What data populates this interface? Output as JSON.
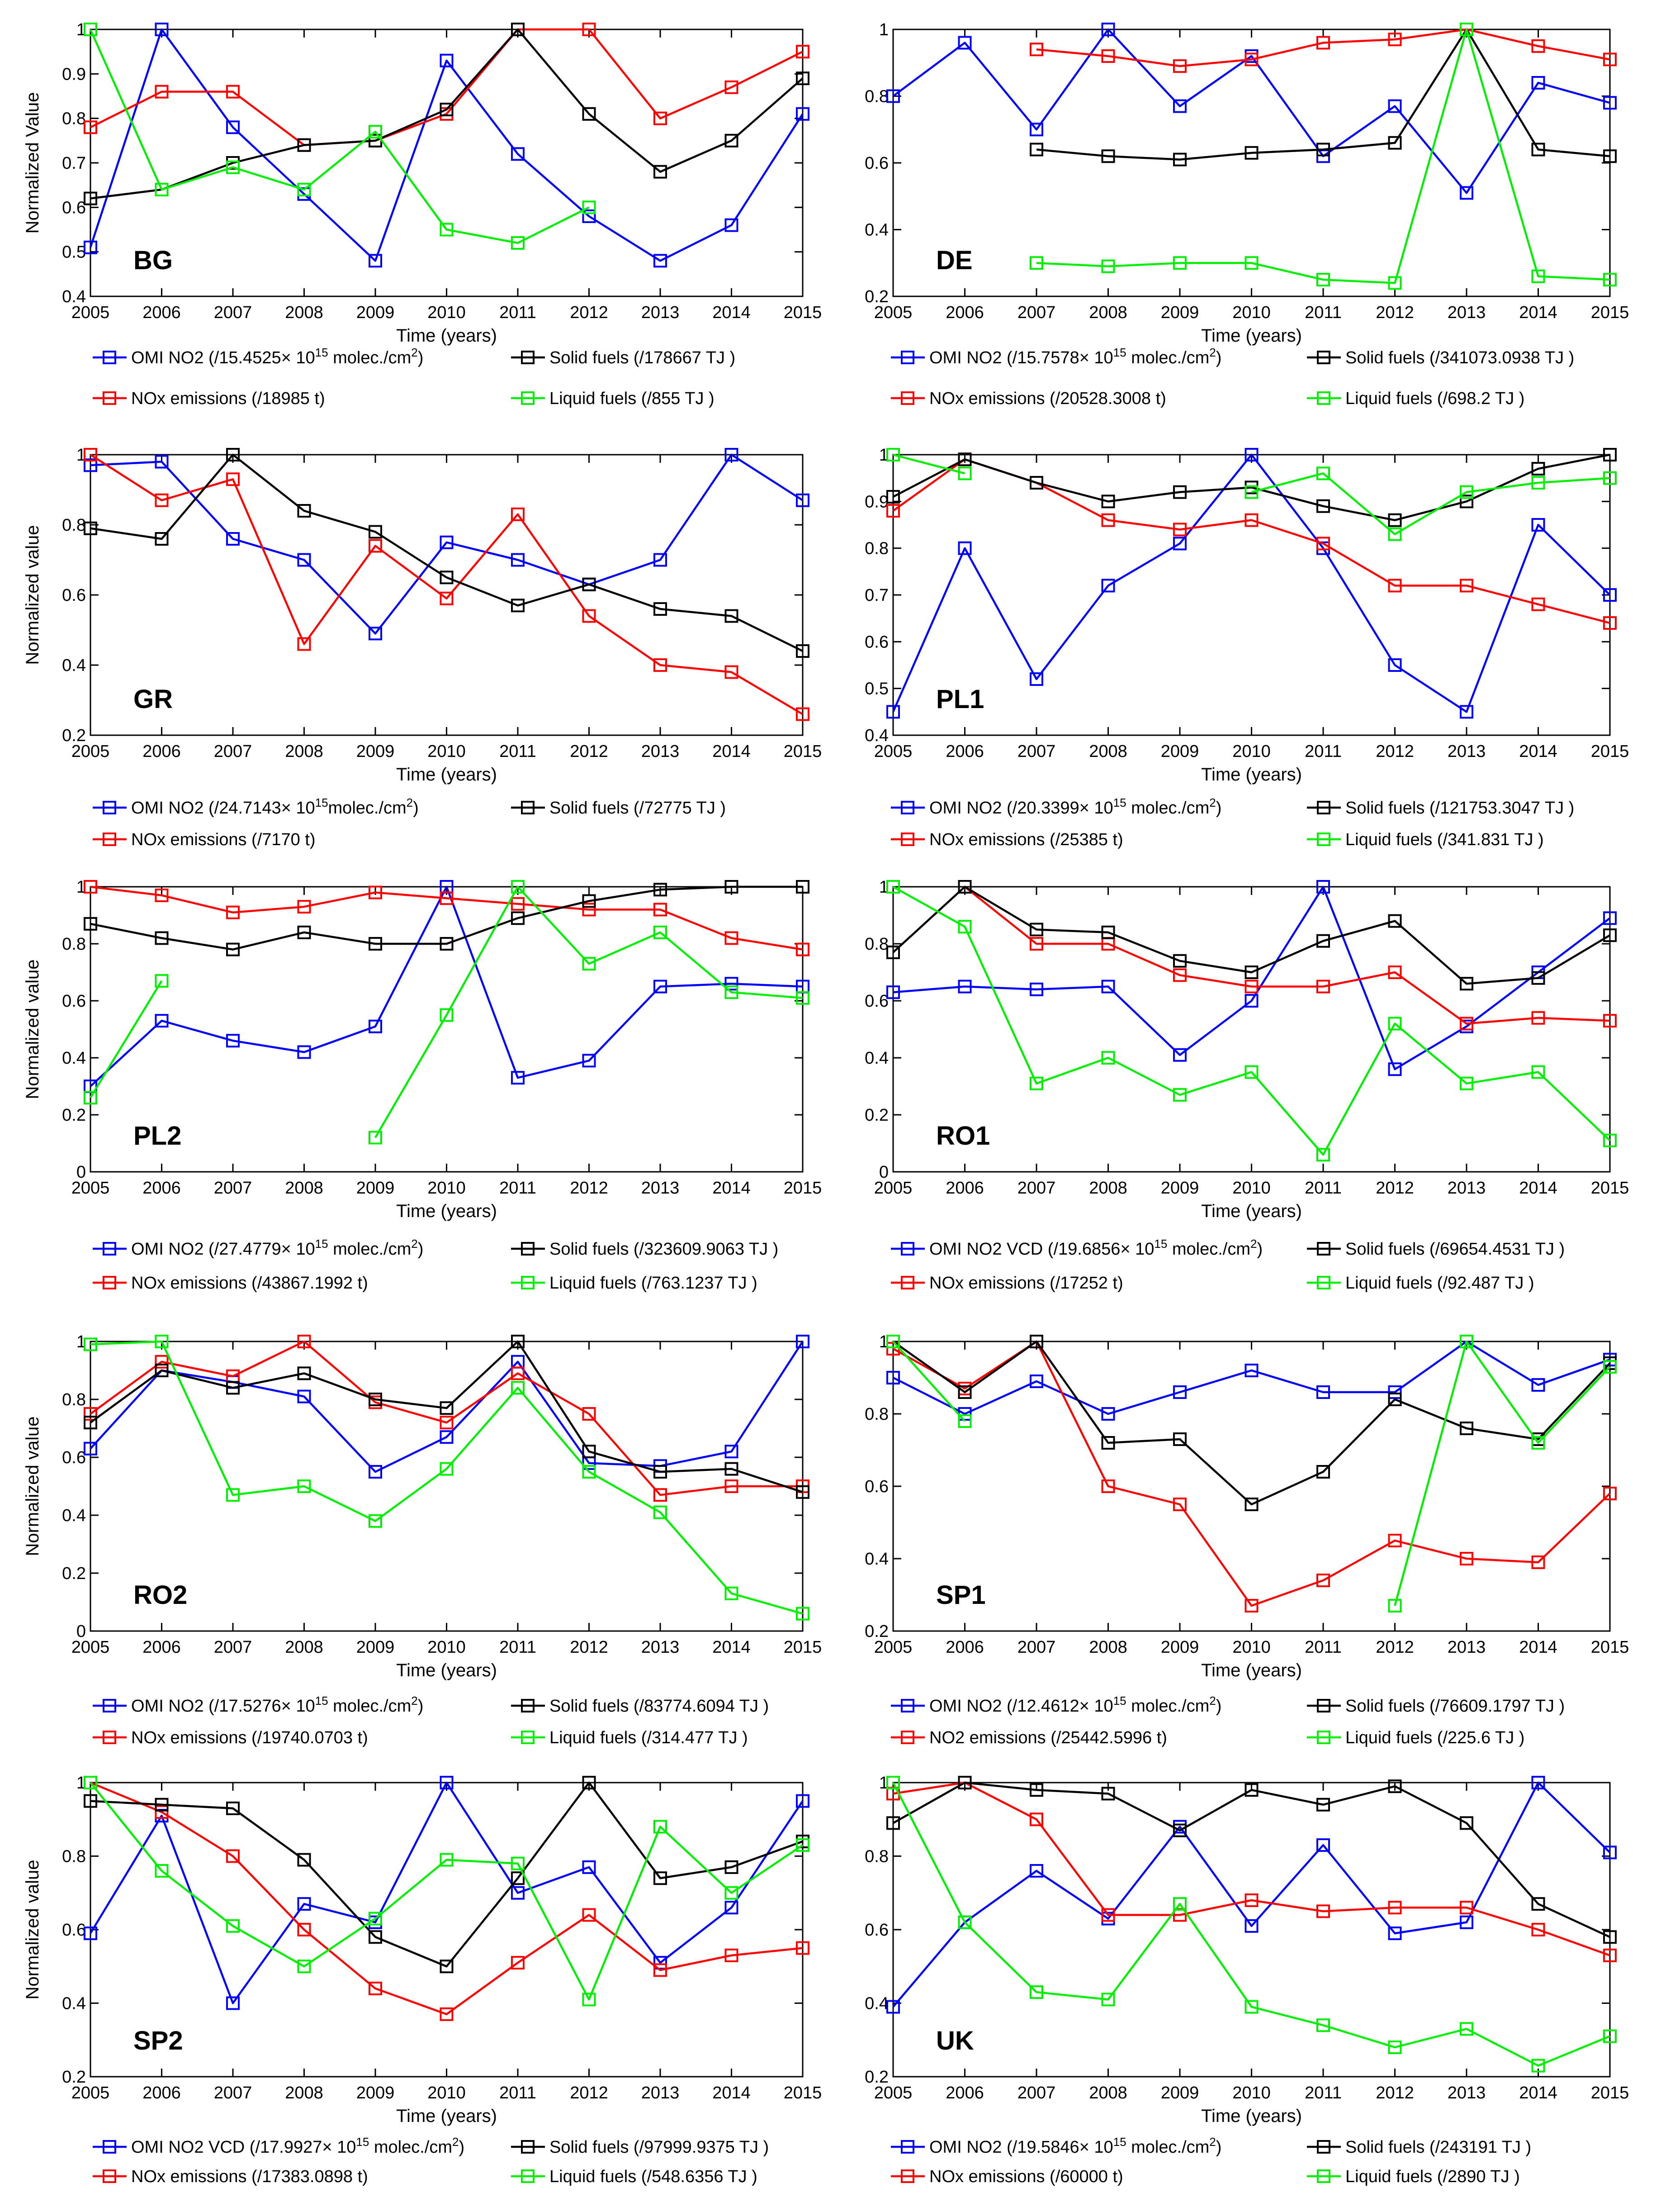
{
  "colors": {
    "omi": "#0000ff",
    "nox": "#ff0000",
    "solid": "#000000",
    "liquid": "#00ee00"
  },
  "chart_data": [
    {
      "type": "line",
      "code": "BG",
      "x": [
        2005,
        2006,
        2007,
        2008,
        2009,
        2010,
        2011,
        2012,
        2013,
        2014,
        2015
      ],
      "ylim": [
        0.4,
        1
      ],
      "yticks": [
        "0.4",
        "0.5",
        "0.6",
        "0.7",
        "0.8",
        "0.9",
        "1"
      ],
      "ylabel": "Normalized Value",
      "xlabel": "Time (years)",
      "series": [
        {
          "key": "omi",
          "legend": "OMI NO2 (/15.4525× 10",
          "sup": "15",
          "tail": " molec./cm",
          "sup2": "2",
          "tail2": ")",
          "values": [
            0.51,
            1.0,
            0.78,
            0.63,
            0.48,
            0.93,
            0.72,
            0.58,
            0.48,
            0.56,
            0.81
          ]
        },
        {
          "key": "nox",
          "legend": "NOx emissions (/18985 t)",
          "values": [
            0.78,
            0.86,
            0.86,
            0.74,
            0.75,
            0.81,
            1.0,
            1.0,
            0.8,
            0.87,
            0.95
          ]
        },
        {
          "key": "solid",
          "legend": "Solid fuels (/178667 TJ )",
          "values": [
            0.62,
            0.64,
            0.7,
            0.74,
            0.75,
            0.82,
            1.0,
            0.81,
            0.68,
            0.75,
            0.89
          ]
        },
        {
          "key": "liquid",
          "legend": "Liquid fuels (/855 TJ )",
          "values": [
            1.0,
            0.64,
            0.69,
            0.64,
            0.77,
            0.55,
            0.52,
            0.6,
            null,
            null,
            null
          ]
        }
      ]
    },
    {
      "type": "line",
      "code": "DE",
      "x": [
        2005,
        2006,
        2007,
        2008,
        2009,
        2010,
        2011,
        2012,
        2013,
        2014,
        2015
      ],
      "ylim": [
        0.2,
        1
      ],
      "yticks": [
        "0.2",
        "0.4",
        "0.6",
        "0.8",
        "1"
      ],
      "ylabel": "",
      "xlabel": "Time (years)",
      "series": [
        {
          "key": "omi",
          "legend": "OMI NO2 (/15.7578× 10",
          "sup": "15",
          "tail": " molec./cm",
          "sup2": "2",
          "tail2": ")",
          "values": [
            0.8,
            0.96,
            0.7,
            1.0,
            0.77,
            0.92,
            0.62,
            0.77,
            0.51,
            0.84,
            0.78
          ]
        },
        {
          "key": "nox",
          "legend": "NOx emissions (/20528.3008 t)",
          "values": [
            null,
            null,
            0.94,
            0.92,
            0.89,
            0.91,
            0.96,
            0.97,
            1.0,
            0.95,
            0.91
          ]
        },
        {
          "key": "solid",
          "legend": "Solid fuels (/341073.0938 TJ )",
          "values": [
            null,
            null,
            0.64,
            0.62,
            0.61,
            0.63,
            0.64,
            0.66,
            1.0,
            0.64,
            0.62
          ]
        },
        {
          "key": "liquid",
          "legend": "Liquid fuels (/698.2 TJ )",
          "values": [
            null,
            null,
            0.3,
            0.29,
            0.3,
            0.3,
            0.25,
            0.24,
            1.0,
            0.26,
            0.25
          ]
        }
      ]
    },
    {
      "type": "line",
      "code": "GR",
      "x": [
        2005,
        2006,
        2007,
        2008,
        2009,
        2010,
        2011,
        2012,
        2013,
        2014,
        2015
      ],
      "ylim": [
        0.2,
        1
      ],
      "yticks": [
        "0.2",
        "0.4",
        "0.6",
        "0.8",
        "1"
      ],
      "ylabel": "Normalized value",
      "xlabel": "Time (years)",
      "series": [
        {
          "key": "omi",
          "legend": "OMI NO2 (/24.7143× 10",
          "sup": "15",
          "tail": "molec./cm",
          "sup2": "2",
          "tail2": ")",
          "values": [
            0.97,
            0.98,
            0.76,
            0.7,
            0.49,
            0.75,
            0.7,
            0.63,
            0.7,
            1.0,
            0.87
          ]
        },
        {
          "key": "nox",
          "legend": "NOx emissions (/7170 t)",
          "values": [
            1.0,
            0.87,
            0.93,
            0.46,
            0.74,
            0.59,
            0.83,
            0.54,
            0.4,
            0.38,
            0.26
          ]
        },
        {
          "key": "solid",
          "legend": "Solid fuels (/72775 TJ )",
          "values": [
            0.79,
            0.76,
            1.0,
            0.84,
            0.78,
            0.65,
            0.57,
            0.63,
            0.56,
            0.54,
            0.44
          ]
        }
      ]
    },
    {
      "type": "line",
      "code": "PL1",
      "x": [
        2005,
        2006,
        2007,
        2008,
        2009,
        2010,
        2011,
        2012,
        2013,
        2014,
        2015
      ],
      "ylim": [
        0.4,
        1
      ],
      "yticks": [
        "0.4",
        "0.5",
        "0.6",
        "0.7",
        "0.8",
        "0.9",
        "1"
      ],
      "ylabel": "",
      "xlabel": "Time (years)",
      "series": [
        {
          "key": "omi",
          "legend": "OMI NO2 (/20.3399× 10",
          "sup": "15",
          "tail": " molec./cm",
          "sup2": "2",
          "tail2": ")",
          "values": [
            0.45,
            0.8,
            0.52,
            0.72,
            0.81,
            1.0,
            0.8,
            0.55,
            0.45,
            0.85,
            0.7
          ]
        },
        {
          "key": "nox",
          "legend": "NOx emissions (/25385 t)",
          "values": [
            0.88,
            0.99,
            0.94,
            0.86,
            0.84,
            0.86,
            0.81,
            0.72,
            0.72,
            0.68,
            0.64
          ]
        },
        {
          "key": "solid",
          "legend": "Solid fuels (/121753.3047 TJ )",
          "values": [
            0.91,
            0.99,
            0.94,
            0.9,
            0.92,
            0.93,
            0.89,
            0.86,
            0.9,
            0.97,
            1.0
          ]
        },
        {
          "key": "liquid",
          "legend": "Liquid fuels (/341.831 TJ )",
          "values": [
            1.0,
            0.96,
            null,
            null,
            null,
            0.92,
            0.96,
            0.83,
            0.92,
            0.94,
            0.95
          ]
        }
      ]
    },
    {
      "type": "line",
      "code": "PL2",
      "x": [
        2005,
        2006,
        2007,
        2008,
        2009,
        2010,
        2011,
        2012,
        2013,
        2014,
        2015
      ],
      "ylim": [
        0,
        1
      ],
      "yticks": [
        "0",
        "0.2",
        "0.4",
        "0.6",
        "0.8",
        "1"
      ],
      "ylabel": "Normalized value",
      "xlabel": "Time (years)",
      "xtick_last": "2015",
      "series": [
        {
          "key": "omi",
          "legend": "OMI NO2 (/27.4779× 10",
          "sup": "15",
          "tail": " molec./cm",
          "sup2": "2",
          "tail2": ")",
          "values": [
            0.3,
            0.53,
            0.46,
            0.42,
            0.51,
            1.0,
            0.33,
            0.39,
            0.65,
            0.66,
            0.65
          ]
        },
        {
          "key": "nox",
          "legend": "NOx emissions (/43867.1992 t)",
          "values": [
            1.0,
            0.97,
            0.91,
            0.93,
            0.98,
            0.96,
            0.94,
            0.92,
            0.92,
            0.82,
            0.78
          ]
        },
        {
          "key": "solid",
          "legend": "Solid fuels (/323609.9063 TJ )",
          "values": [
            0.87,
            0.82,
            0.78,
            0.84,
            0.8,
            0.8,
            0.89,
            0.95,
            0.99,
            1.0,
            1.0
          ]
        },
        {
          "key": "liquid",
          "legend": "Liquid fuels (/763.1237 TJ )",
          "values": [
            0.26,
            0.67,
            null,
            null,
            0.12,
            0.55,
            1.0,
            0.73,
            0.84,
            0.63,
            0.61
          ]
        }
      ]
    },
    {
      "type": "line",
      "code": "RO1",
      "x": [
        2005,
        2006,
        2007,
        2008,
        2009,
        2010,
        2011,
        2012,
        2013,
        2014,
        2015
      ],
      "ylim": [
        0,
        1
      ],
      "yticks": [
        "0",
        "0.2",
        "0.4",
        "0.6",
        "0.8",
        "1"
      ],
      "ylabel": "",
      "xlabel": "Time (years)",
      "series": [
        {
          "key": "omi",
          "legend": "OMI NO2 VCD (/19.6856× 10",
          "sup": "15",
          "tail": " molec./cm",
          "sup2": "2",
          "tail2": ")",
          "values": [
            0.63,
            0.65,
            0.64,
            0.65,
            0.41,
            0.6,
            1.0,
            0.36,
            0.51,
            0.7,
            0.89
          ]
        },
        {
          "key": "nox",
          "legend": "NOx emissions (/17252 t)",
          "values": [
            0.77,
            1.0,
            0.8,
            0.8,
            0.69,
            0.65,
            0.65,
            0.7,
            0.52,
            0.54,
            0.53
          ]
        },
        {
          "key": "solid",
          "legend": "Solid fuels (/69654.4531 TJ )",
          "values": [
            0.77,
            1.0,
            0.85,
            0.84,
            0.74,
            0.7,
            0.81,
            0.88,
            0.66,
            0.68,
            0.83
          ]
        },
        {
          "key": "liquid",
          "legend": "Liquid fuels (/92.487 TJ )",
          "values": [
            1.0,
            0.86,
            0.31,
            0.4,
            0.27,
            0.35,
            0.06,
            0.52,
            0.31,
            0.35,
            0.11
          ]
        }
      ]
    },
    {
      "type": "line",
      "code": "RO2",
      "x": [
        2005,
        2006,
        2007,
        2008,
        2009,
        2010,
        2011,
        2012,
        2013,
        2014,
        2015
      ],
      "ylim": [
        0,
        1
      ],
      "yticks": [
        "0",
        "0.2",
        "0.4",
        "0.6",
        "0.8",
        "1"
      ],
      "ylabel": "Normalized value",
      "xlabel": "Time (years)",
      "series": [
        {
          "key": "omi",
          "legend": "OMI NO2 (/17.5276× 10",
          "sup": "15",
          "tail": " molec./cm",
          "sup2": "2",
          "tail2": ")",
          "values": [
            0.63,
            0.9,
            0.86,
            0.81,
            0.55,
            0.67,
            0.93,
            0.58,
            0.57,
            0.62,
            1.0
          ]
        },
        {
          "key": "nox",
          "legend": "NOx emissions (/19740.0703 t)",
          "values": [
            0.75,
            0.93,
            0.88,
            1.0,
            0.79,
            0.72,
            0.89,
            0.75,
            0.47,
            0.5,
            0.5
          ]
        },
        {
          "key": "solid",
          "legend": "Solid fuels (/83774.6094 TJ )",
          "values": [
            0.72,
            0.9,
            0.84,
            0.89,
            0.8,
            0.77,
            1.0,
            0.62,
            0.55,
            0.56,
            0.48
          ]
        },
        {
          "key": "liquid",
          "legend": "Liquid fuels (/314.477 TJ )",
          "values": [
            0.99,
            1.0,
            0.47,
            0.5,
            0.38,
            0.56,
            0.84,
            0.55,
            0.41,
            0.13,
            0.06
          ]
        }
      ]
    },
    {
      "type": "line",
      "code": "SP1",
      "x": [
        2005,
        2006,
        2007,
        2008,
        2009,
        2010,
        2011,
        2012,
        2013,
        2014,
        2015
      ],
      "ylim": [
        0.2,
        1
      ],
      "yticks": [
        "0.2",
        "0.4",
        "0.6",
        "0.8",
        "1"
      ],
      "ylabel": "",
      "xlabel": "Time (years)",
      "series": [
        {
          "key": "omi",
          "legend": "OMI NO2 (/12.4612× 10",
          "sup": "15",
          "tail": " molec./cm",
          "sup2": "2",
          "tail2": ")",
          "values": [
            0.9,
            0.8,
            0.89,
            0.8,
            0.86,
            0.92,
            0.86,
            0.86,
            1.0,
            0.88,
            0.95
          ]
        },
        {
          "key": "nox",
          "legend": "NO2 emissions (/25442.5996 t)",
          "values": [
            0.98,
            0.87,
            1.0,
            0.6,
            0.55,
            0.27,
            0.34,
            0.45,
            0.4,
            0.39,
            0.58
          ]
        },
        {
          "key": "solid",
          "legend": "Solid fuels (/76609.1797 TJ )",
          "values": [
            1.0,
            0.86,
            1.0,
            0.72,
            0.73,
            0.55,
            0.64,
            0.84,
            0.76,
            0.73,
            0.94
          ]
        },
        {
          "key": "liquid",
          "legend": "Liquid fuels (/225.6 TJ )",
          "values": [
            1.0,
            0.78,
            null,
            null,
            null,
            null,
            null,
            0.27,
            1.0,
            0.72,
            0.93
          ]
        }
      ]
    },
    {
      "type": "line",
      "code": "SP2",
      "x": [
        2005,
        2006,
        2007,
        2008,
        2009,
        2010,
        2011,
        2012,
        2013,
        2014,
        2015
      ],
      "ylim": [
        0.2,
        1
      ],
      "yticks": [
        "0.2",
        "0.4",
        "0.6",
        "0.8",
        "1"
      ],
      "ylabel": "Normalized value",
      "xlabel": "Time (years)",
      "series": [
        {
          "key": "omi",
          "legend": "OMI NO2 VCD (/17.9927× 10",
          "sup": "15",
          "tail": " molec./cm",
          "sup2": "2",
          "tail2": ")",
          "values": [
            0.59,
            0.91,
            0.4,
            0.67,
            0.62,
            1.0,
            0.7,
            0.77,
            0.51,
            0.66,
            0.95
          ]
        },
        {
          "key": "nox",
          "legend": "NOx emissions (/17383.0898 t)",
          "values": [
            1.0,
            0.92,
            0.8,
            0.6,
            0.44,
            0.37,
            0.51,
            0.64,
            0.49,
            0.53,
            0.55
          ]
        },
        {
          "key": "solid",
          "legend": "Solid fuels (/97999.9375 TJ )",
          "values": [
            0.95,
            0.94,
            0.93,
            0.79,
            0.58,
            0.5,
            0.74,
            1.0,
            0.74,
            0.77,
            0.84
          ]
        },
        {
          "key": "liquid",
          "legend": "Liquid fuels (/548.6356 TJ )",
          "values": [
            1.0,
            0.76,
            0.61,
            0.5,
            0.63,
            0.79,
            0.78,
            0.41,
            0.88,
            0.7,
            0.83
          ]
        }
      ]
    },
    {
      "type": "line",
      "code": "UK",
      "x": [
        2005,
        2006,
        2007,
        2008,
        2009,
        2010,
        2011,
        2012,
        2013,
        2014,
        2015
      ],
      "ylim": [
        0.2,
        1
      ],
      "yticks": [
        "0.2",
        "0.4",
        "0.6",
        "0.8",
        "1"
      ],
      "ylabel": "",
      "xlabel": "Time (years)",
      "series": [
        {
          "key": "omi",
          "legend": "OMI NO2 (/19.5846× 10",
          "sup": "15",
          "tail": " molec./cm",
          "sup2": "2",
          "tail2": ")",
          "values": [
            0.39,
            0.62,
            0.76,
            0.63,
            0.88,
            0.61,
            0.83,
            0.59,
            0.62,
            1.0,
            0.81
          ]
        },
        {
          "key": "nox",
          "legend": "NOx emissions (/60000 t)",
          "values": [
            0.97,
            1.0,
            0.9,
            0.64,
            0.64,
            0.68,
            0.65,
            0.66,
            0.66,
            0.6,
            0.53
          ]
        },
        {
          "key": "solid",
          "legend": "Solid fuels (/243191 TJ )",
          "values": [
            0.89,
            1.0,
            0.98,
            0.97,
            0.87,
            0.98,
            0.94,
            0.99,
            0.89,
            0.67,
            0.58
          ]
        },
        {
          "key": "liquid",
          "legend": "Liquid fuels (/2890 TJ )",
          "values": [
            1.0,
            0.62,
            0.43,
            0.41,
            0.67,
            0.39,
            0.34,
            0.28,
            0.33,
            0.23,
            0.31
          ]
        }
      ]
    }
  ]
}
